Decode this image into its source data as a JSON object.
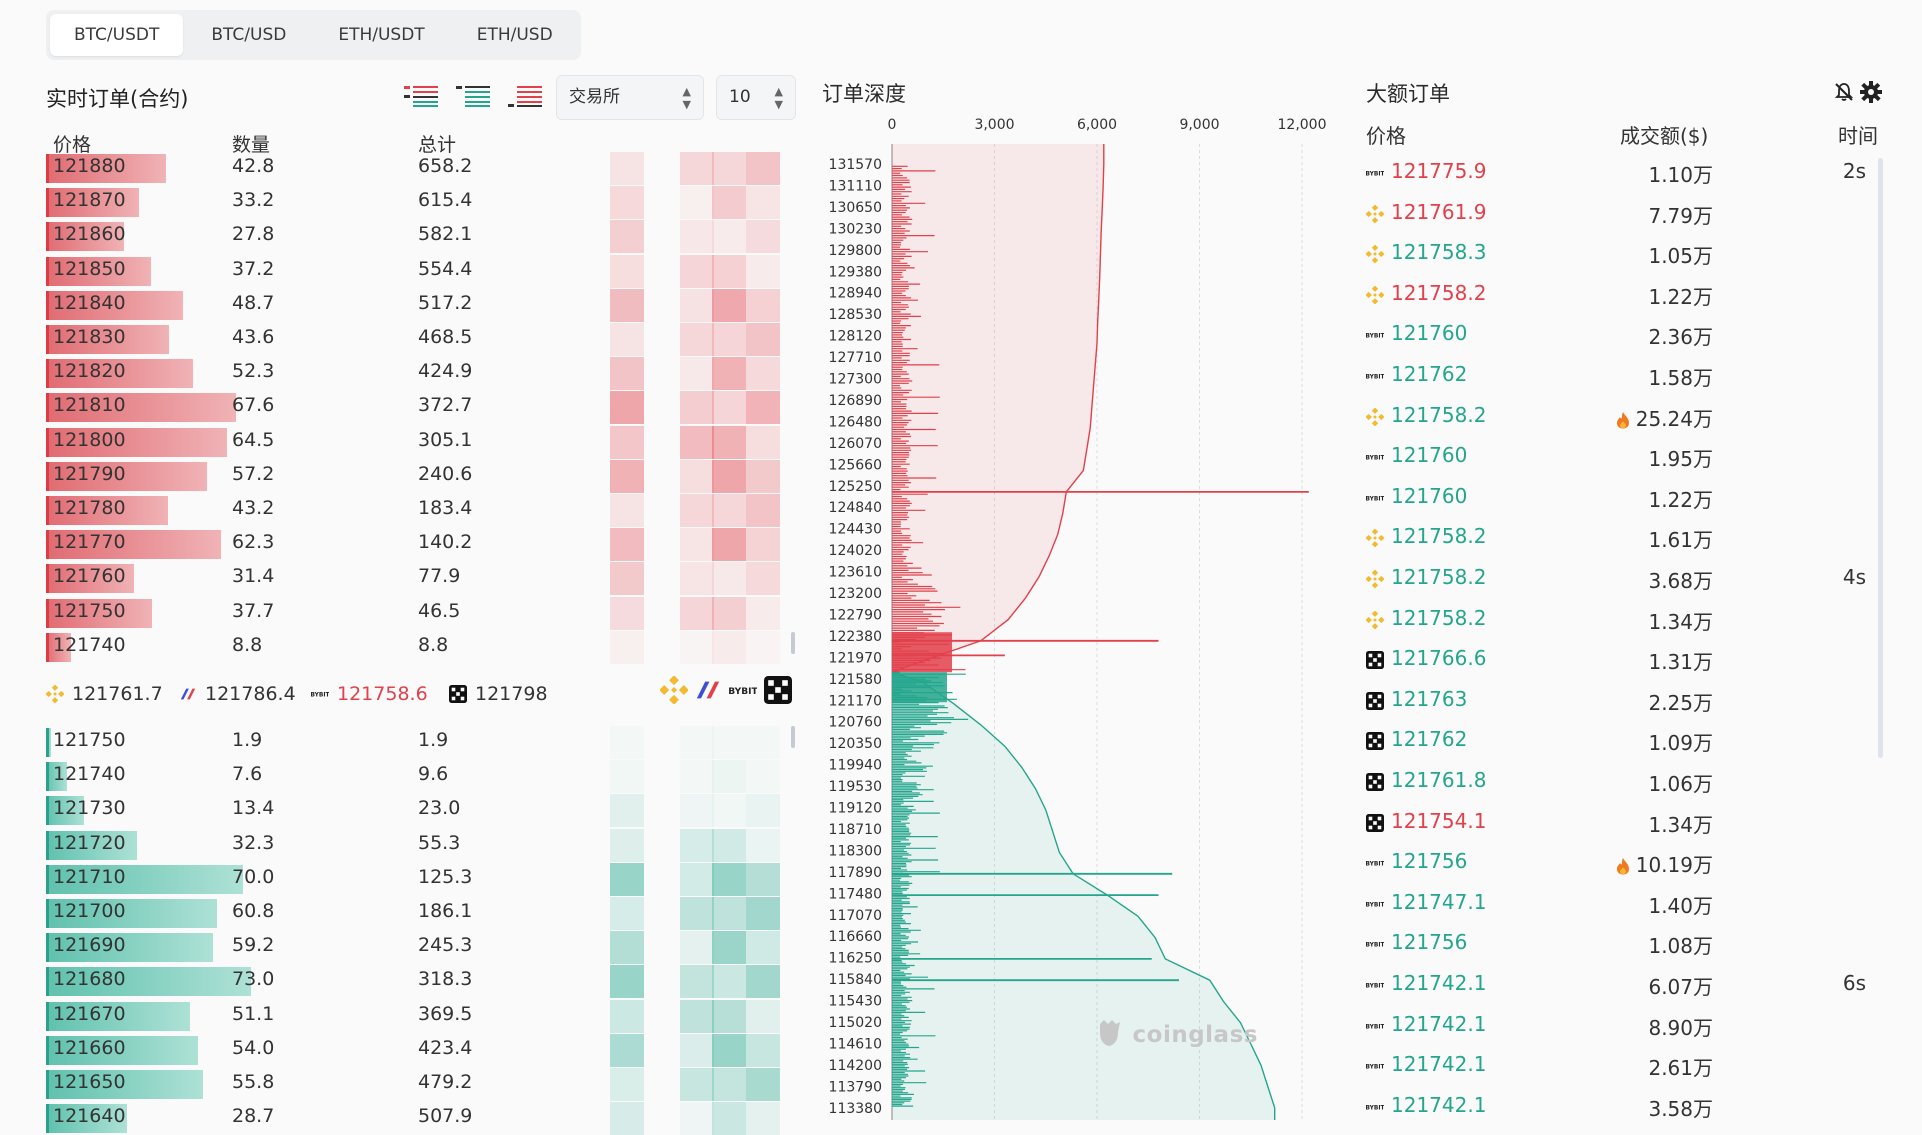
{
  "tabs": [
    "BTC/USDT",
    "BTC/USD",
    "ETH/USDT",
    "ETH/USD"
  ],
  "active_tab": 0,
  "orderbook": {
    "title": "实时订单(合约)",
    "exchange_select": "交易所",
    "depth_select": "10",
    "headers": {
      "price": "价格",
      "qty": "数量",
      "total": "总计"
    },
    "asks": [
      {
        "price": "121880",
        "qty": "42.8",
        "total": "658.2"
      },
      {
        "price": "121870",
        "qty": "33.2",
        "total": "615.4"
      },
      {
        "price": "121860",
        "qty": "27.8",
        "total": "582.1"
      },
      {
        "price": "121850",
        "qty": "37.2",
        "total": "554.4"
      },
      {
        "price": "121840",
        "qty": "48.7",
        "total": "517.2"
      },
      {
        "price": "121830",
        "qty": "43.6",
        "total": "468.5"
      },
      {
        "price": "121820",
        "qty": "52.3",
        "total": "424.9"
      },
      {
        "price": "121810",
        "qty": "67.6",
        "total": "372.7"
      },
      {
        "price": "121800",
        "qty": "64.5",
        "total": "305.1"
      },
      {
        "price": "121790",
        "qty": "57.2",
        "total": "240.6"
      },
      {
        "price": "121780",
        "qty": "43.2",
        "total": "183.4"
      },
      {
        "price": "121770",
        "qty": "62.3",
        "total": "140.2"
      },
      {
        "price": "121760",
        "qty": "31.4",
        "total": "77.9"
      },
      {
        "price": "121750",
        "qty": "37.7",
        "total": "46.5"
      },
      {
        "price": "121740",
        "qty": "8.8",
        "total": "8.8"
      }
    ],
    "bids": [
      {
        "price": "121750",
        "qty": "1.9",
        "total": "1.9"
      },
      {
        "price": "121740",
        "qty": "7.6",
        "total": "9.6"
      },
      {
        "price": "121730",
        "qty": "13.4",
        "total": "23.0"
      },
      {
        "price": "121720",
        "qty": "32.3",
        "total": "55.3"
      },
      {
        "price": "121710",
        "qty": "70.0",
        "total": "125.3"
      },
      {
        "price": "121700",
        "qty": "60.8",
        "total": "186.1"
      },
      {
        "price": "121690",
        "qty": "59.2",
        "total": "245.3"
      },
      {
        "price": "121680",
        "qty": "73.0",
        "total": "318.3"
      },
      {
        "price": "121670",
        "qty": "51.1",
        "total": "369.5"
      },
      {
        "price": "121660",
        "qty": "54.0",
        "total": "423.4"
      },
      {
        "price": "121650",
        "qty": "55.8",
        "total": "479.2"
      },
      {
        "price": "121640",
        "qty": "28.7",
        "total": "507.9"
      }
    ],
    "exchange_prices": [
      {
        "exchange": "binance",
        "price": "121761.7",
        "color": "#333333"
      },
      {
        "exchange": "bitmex",
        "price": "121786.4",
        "color": "#333333"
      },
      {
        "exchange": "bybit",
        "price": "121758.6",
        "color": "#e2404b"
      },
      {
        "exchange": "okx",
        "price": "121798",
        "color": "#333333"
      }
    ]
  },
  "depth": {
    "title": "订单深度",
    "x_ticks": [
      "0",
      "3,000",
      "6,000",
      "9,000",
      "12,000"
    ],
    "price_labels": [
      "131570",
      "131110",
      "130650",
      "130230",
      "129800",
      "129380",
      "128940",
      "128530",
      "128120",
      "127710",
      "127300",
      "126890",
      "126480",
      "126070",
      "125660",
      "125250",
      "124840",
      "124430",
      "124020",
      "123610",
      "123200",
      "122790",
      "122380",
      "121970",
      "121580",
      "121170",
      "120760",
      "120350",
      "119940",
      "119530",
      "119120",
      "118710",
      "118300",
      "117890",
      "117480",
      "117070",
      "116660",
      "116250",
      "115840",
      "115430",
      "115020",
      "114610",
      "114200",
      "113790",
      "113380"
    ],
    "watermark": "coinglass"
  },
  "chart_data": {
    "type": "area",
    "title": "订单深度",
    "x_axis_values": [
      0,
      3000,
      6000,
      9000,
      12000
    ],
    "xlim": [
      0,
      12000
    ],
    "ylim": [
      113380,
      131570
    ],
    "series": [
      {
        "side": "ask",
        "color": "#e2404b",
        "cumulative": [
          [
            121970,
            800
          ],
          [
            122380,
            2600
          ],
          [
            122790,
            3400
          ],
          [
            123200,
            3900
          ],
          [
            123610,
            4300
          ],
          [
            124020,
            4600
          ],
          [
            124430,
            4850
          ],
          [
            124840,
            5000
          ],
          [
            125250,
            5100
          ],
          [
            125660,
            5600
          ],
          [
            126070,
            5700
          ],
          [
            126480,
            5800
          ],
          [
            126890,
            5850
          ],
          [
            127300,
            5900
          ],
          [
            127710,
            5950
          ],
          [
            128120,
            6000
          ],
          [
            128530,
            6020
          ],
          [
            128940,
            6050
          ],
          [
            129380,
            6080
          ],
          [
            129800,
            6100
          ],
          [
            130230,
            6120
          ],
          [
            130650,
            6150
          ],
          [
            131110,
            6180
          ],
          [
            131570,
            6200
          ]
        ],
        "large_levels": [
          [
            125250,
            12200
          ],
          [
            122380,
            7800
          ],
          [
            122100,
            3300
          ]
        ]
      },
      {
        "side": "bid",
        "color": "#23a68c",
        "cumulative": [
          [
            121580,
            900
          ],
          [
            121170,
            1800
          ],
          [
            120760,
            2600
          ],
          [
            120350,
            3300
          ],
          [
            119940,
            3800
          ],
          [
            119530,
            4200
          ],
          [
            119120,
            4500
          ],
          [
            118710,
            4700
          ],
          [
            118300,
            4900
          ],
          [
            117890,
            5300
          ],
          [
            117480,
            6300
          ],
          [
            117070,
            7200
          ],
          [
            116660,
            7700
          ],
          [
            116250,
            8000
          ],
          [
            115840,
            9300
          ],
          [
            115430,
            9700
          ],
          [
            115020,
            10200
          ],
          [
            114610,
            10500
          ],
          [
            114200,
            10800
          ],
          [
            113790,
            11000
          ],
          [
            113380,
            11200
          ]
        ],
        "large_levels": [
          [
            117890,
            8200
          ],
          [
            117480,
            7800
          ],
          [
            115840,
            8400
          ],
          [
            116250,
            7600
          ]
        ]
      }
    ]
  },
  "big_orders": {
    "title": "大额订单",
    "headers": {
      "price": "价格",
      "amount": "成交额($)",
      "time": "时间"
    },
    "rows": [
      {
        "ex": "bybit",
        "price": "121775.9",
        "side": "sell",
        "amount": "1.10万",
        "fire": false,
        "time": "2s"
      },
      {
        "ex": "binance",
        "price": "121761.9",
        "side": "sell",
        "amount": "7.79万",
        "fire": false,
        "time": ""
      },
      {
        "ex": "binance",
        "price": "121758.3",
        "side": "buy",
        "amount": "1.05万",
        "fire": false,
        "time": ""
      },
      {
        "ex": "binance",
        "price": "121758.2",
        "side": "sell",
        "amount": "1.22万",
        "fire": false,
        "time": ""
      },
      {
        "ex": "bybit",
        "price": "121760",
        "side": "buy",
        "amount": "2.36万",
        "fire": false,
        "time": ""
      },
      {
        "ex": "bybit",
        "price": "121762",
        "side": "buy",
        "amount": "1.58万",
        "fire": false,
        "time": ""
      },
      {
        "ex": "binance",
        "price": "121758.2",
        "side": "buy",
        "amount": "25.24万",
        "fire": true,
        "time": ""
      },
      {
        "ex": "bybit",
        "price": "121760",
        "side": "buy",
        "amount": "1.95万",
        "fire": false,
        "time": ""
      },
      {
        "ex": "bybit",
        "price": "121760",
        "side": "buy",
        "amount": "1.22万",
        "fire": false,
        "time": ""
      },
      {
        "ex": "binance",
        "price": "121758.2",
        "side": "buy",
        "amount": "1.61万",
        "fire": false,
        "time": ""
      },
      {
        "ex": "binance",
        "price": "121758.2",
        "side": "buy",
        "amount": "3.68万",
        "fire": false,
        "time": "4s"
      },
      {
        "ex": "binance",
        "price": "121758.2",
        "side": "buy",
        "amount": "1.34万",
        "fire": false,
        "time": ""
      },
      {
        "ex": "okx",
        "price": "121766.6",
        "side": "buy",
        "amount": "1.31万",
        "fire": false,
        "time": ""
      },
      {
        "ex": "okx",
        "price": "121763",
        "side": "buy",
        "amount": "2.25万",
        "fire": false,
        "time": ""
      },
      {
        "ex": "okx",
        "price": "121762",
        "side": "buy",
        "amount": "1.09万",
        "fire": false,
        "time": ""
      },
      {
        "ex": "okx",
        "price": "121761.8",
        "side": "buy",
        "amount": "1.06万",
        "fire": false,
        "time": ""
      },
      {
        "ex": "okx",
        "price": "121754.1",
        "side": "sell",
        "amount": "1.34万",
        "fire": false,
        "time": ""
      },
      {
        "ex": "bybit",
        "price": "121756",
        "side": "buy",
        "amount": "10.19万",
        "fire": true,
        "time": ""
      },
      {
        "ex": "bybit",
        "price": "121747.1",
        "side": "buy",
        "amount": "1.40万",
        "fire": false,
        "time": ""
      },
      {
        "ex": "bybit",
        "price": "121756",
        "side": "buy",
        "amount": "1.08万",
        "fire": false,
        "time": ""
      },
      {
        "ex": "bybit",
        "price": "121742.1",
        "side": "buy",
        "amount": "6.07万",
        "fire": false,
        "time": "6s"
      },
      {
        "ex": "bybit",
        "price": "121742.1",
        "side": "buy",
        "amount": "8.90万",
        "fire": false,
        "time": ""
      },
      {
        "ex": "bybit",
        "price": "121742.1",
        "side": "buy",
        "amount": "2.61万",
        "fire": false,
        "time": ""
      },
      {
        "ex": "bybit",
        "price": "121742.1",
        "side": "buy",
        "amount": "3.58万",
        "fire": false,
        "time": ""
      }
    ]
  },
  "colors": {
    "ask": "#e2404b",
    "bid": "#23a68c",
    "binance": "#f3ba2f",
    "okx": "#111111",
    "bitmex_red": "#e2404b",
    "bitmex_blue": "#3b4fd6"
  }
}
